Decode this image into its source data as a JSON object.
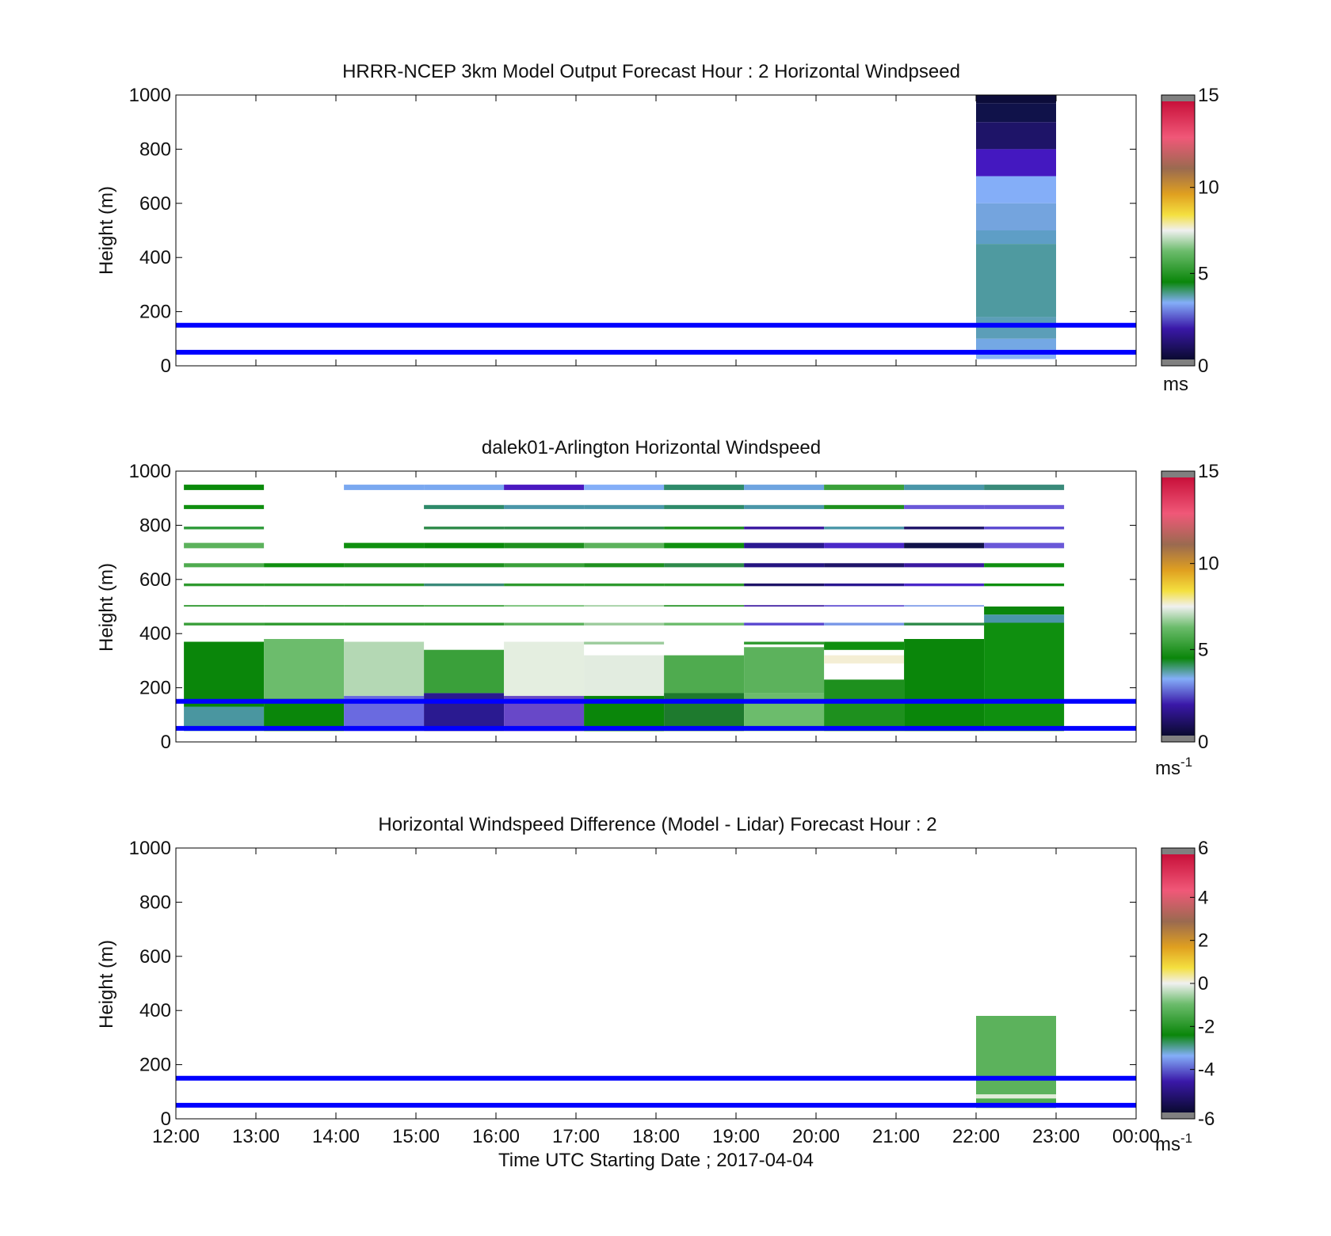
{
  "figure": {
    "xlabel": "Time UTC  Starting Date ; 2017-04-04",
    "x_ticks": [
      "12:00",
      "13:00",
      "14:00",
      "15:00",
      "16:00",
      "17:00",
      "18:00",
      "19:00",
      "20:00",
      "21:00",
      "22:00",
      "23:00",
      "00:00"
    ],
    "y_ticks": [
      "0",
      "200",
      "400",
      "600",
      "800",
      "1000"
    ],
    "ylabel": "Height (m)",
    "reference_line_color": "#0000ff",
    "reference_lines_m": [
      50,
      150
    ]
  },
  "chart_data": [
    {
      "type": "heatmap",
      "title": "HRRR-NCEP 3km Model Output   Forecast Hour : 2 Horizontal Windpseed",
      "ylabel": "Height (m)",
      "xlim_hours": [
        12,
        24
      ],
      "ylim": [
        0,
        1000
      ],
      "colorbar": {
        "ticks": [
          "0",
          "5",
          "10",
          "15"
        ],
        "range": [
          0,
          15
        ],
        "unit": "ms",
        "unit_sup": ""
      },
      "cells": [
        {
          "t0": 22,
          "t1": 23,
          "h0": 970,
          "h1": 1000,
          "color": "#0c0c3a"
        },
        {
          "t0": 22,
          "t1": 23,
          "h0": 900,
          "h1": 970,
          "color": "#10124a"
        },
        {
          "t0": 22,
          "t1": 23,
          "h0": 800,
          "h1": 900,
          "color": "#1e1468"
        },
        {
          "t0": 22,
          "t1": 23,
          "h0": 700,
          "h1": 800,
          "color": "#4418c0"
        },
        {
          "t0": 22,
          "t1": 23,
          "h0": 600,
          "h1": 700,
          "color": "#84aef8"
        },
        {
          "t0": 22,
          "t1": 23,
          "h0": 500,
          "h1": 600,
          "color": "#74a4de"
        },
        {
          "t0": 22,
          "t1": 23,
          "h0": 450,
          "h1": 500,
          "color": "#5e9ec6"
        },
        {
          "t0": 22,
          "t1": 23,
          "h0": 180,
          "h1": 450,
          "color": "#4f9aa0"
        },
        {
          "t0": 22,
          "t1": 23,
          "h0": 100,
          "h1": 180,
          "color": "#5c9eb8"
        },
        {
          "t0": 22,
          "t1": 23,
          "h0": 60,
          "h1": 100,
          "color": "#74a8e4"
        },
        {
          "t0": 22,
          "t1": 23,
          "h0": 25,
          "h1": 60,
          "color": "#86b2f6"
        }
      ]
    },
    {
      "type": "heatmap",
      "title": "dalek01-Arlington  Horizontal Windspeed",
      "ylabel": "Height (m)",
      "xlim_hours": [
        12,
        24
      ],
      "ylim": [
        0,
        1000
      ],
      "colorbar": {
        "ticks": [
          "0",
          "5",
          "10",
          "15"
        ],
        "range": [
          0,
          15
        ],
        "unit": "ms",
        "unit_sup": "-1"
      },
      "cells": [
        {
          "t0": 12.1,
          "t1": 13.1,
          "h0": 930,
          "h1": 950,
          "color": "#0a8a0a"
        },
        {
          "t0": 12.1,
          "t1": 13.1,
          "h0": 860,
          "h1": 875,
          "color": "#0f8f0f"
        },
        {
          "t0": 12.1,
          "t1": 13.1,
          "h0": 785,
          "h1": 795,
          "color": "#2e9a3a"
        },
        {
          "t0": 12.1,
          "t1": 13.1,
          "h0": 715,
          "h1": 735,
          "color": "#5cb25c"
        },
        {
          "t0": 12.1,
          "t1": 13.1,
          "h0": 645,
          "h1": 660,
          "color": "#4fab4f"
        },
        {
          "t0": 12.1,
          "t1": 13.1,
          "h0": 575,
          "h1": 585,
          "color": "#2e9a2e"
        },
        {
          "t0": 12.1,
          "t1": 13.1,
          "h0": 500,
          "h1": 505,
          "color": "#1e901e"
        },
        {
          "t0": 12.1,
          "t1": 13.1,
          "h0": 430,
          "h1": 440,
          "color": "#3a9f3a"
        },
        {
          "t0": 12.1,
          "t1": 13.1,
          "h0": 130,
          "h1": 370,
          "color": "#0a860a"
        },
        {
          "t0": 12.1,
          "t1": 13.1,
          "h0": 40,
          "h1": 130,
          "color": "#4a96a0"
        },
        {
          "t0": 13.1,
          "t1": 14.1,
          "h0": 645,
          "h1": 660,
          "color": "#0f8f0f"
        },
        {
          "t0": 13.1,
          "t1": 14.1,
          "h0": 575,
          "h1": 585,
          "color": "#2e9a2e"
        },
        {
          "t0": 13.1,
          "t1": 14.1,
          "h0": 500,
          "h1": 505,
          "color": "#1e901e"
        },
        {
          "t0": 13.1,
          "t1": 14.1,
          "h0": 430,
          "h1": 440,
          "color": "#2e9a2e"
        },
        {
          "t0": 13.1,
          "t1": 14.1,
          "h0": 160,
          "h1": 380,
          "color": "#6cbc6c"
        },
        {
          "t0": 13.1,
          "t1": 14.1,
          "h0": 40,
          "h1": 160,
          "color": "#0a860a"
        },
        {
          "t0": 14.1,
          "t1": 15.1,
          "h0": 930,
          "h1": 950,
          "color": "#7aa8f0"
        },
        {
          "t0": 14.1,
          "t1": 15.1,
          "h0": 715,
          "h1": 735,
          "color": "#0f8f0f"
        },
        {
          "t0": 14.1,
          "t1": 15.1,
          "h0": 645,
          "h1": 660,
          "color": "#1e901e"
        },
        {
          "t0": 14.1,
          "t1": 15.1,
          "h0": 575,
          "h1": 585,
          "color": "#2e9a2e"
        },
        {
          "t0": 14.1,
          "t1": 15.1,
          "h0": 500,
          "h1": 505,
          "color": "#1e901e"
        },
        {
          "t0": 14.1,
          "t1": 15.1,
          "h0": 430,
          "h1": 440,
          "color": "#2e9a2e"
        },
        {
          "t0": 14.1,
          "t1": 15.1,
          "h0": 170,
          "h1": 370,
          "color": "#b4d8b4"
        },
        {
          "t0": 14.1,
          "t1": 15.1,
          "h0": 40,
          "h1": 170,
          "color": "#6a6ae0"
        },
        {
          "t0": 15.1,
          "t1": 16.1,
          "h0": 930,
          "h1": 950,
          "color": "#7aa8f0"
        },
        {
          "t0": 15.1,
          "t1": 16.1,
          "h0": 860,
          "h1": 875,
          "color": "#2e8a6a"
        },
        {
          "t0": 15.1,
          "t1": 16.1,
          "h0": 785,
          "h1": 795,
          "color": "#2e8a4a"
        },
        {
          "t0": 15.1,
          "t1": 16.1,
          "h0": 715,
          "h1": 735,
          "color": "#0a8a0a"
        },
        {
          "t0": 15.1,
          "t1": 16.1,
          "h0": 645,
          "h1": 660,
          "color": "#1e901e"
        },
        {
          "t0": 15.1,
          "t1": 16.1,
          "h0": 575,
          "h1": 585,
          "color": "#3a8a7a"
        },
        {
          "t0": 15.1,
          "t1": 16.1,
          "h0": 500,
          "h1": 505,
          "color": "#2e9a2e"
        },
        {
          "t0": 15.1,
          "t1": 16.1,
          "h0": 430,
          "h1": 440,
          "color": "#2e9a2e"
        },
        {
          "t0": 15.1,
          "t1": 16.1,
          "h0": 180,
          "h1": 340,
          "color": "#3aa03a"
        },
        {
          "t0": 15.1,
          "t1": 16.1,
          "h0": 40,
          "h1": 180,
          "color": "#2a1a90"
        },
        {
          "t0": 16.1,
          "t1": 17.1,
          "h0": 930,
          "h1": 950,
          "color": "#4a18c0"
        },
        {
          "t0": 16.1,
          "t1": 17.1,
          "h0": 860,
          "h1": 875,
          "color": "#4a96a8"
        },
        {
          "t0": 16.1,
          "t1": 17.1,
          "h0": 785,
          "h1": 795,
          "color": "#2e8a4a"
        },
        {
          "t0": 16.1,
          "t1": 17.1,
          "h0": 715,
          "h1": 735,
          "color": "#1e901e"
        },
        {
          "t0": 16.1,
          "t1": 17.1,
          "h0": 645,
          "h1": 660,
          "color": "#3aa03a"
        },
        {
          "t0": 16.1,
          "t1": 17.1,
          "h0": 575,
          "h1": 585,
          "color": "#2e9a2e"
        },
        {
          "t0": 16.1,
          "t1": 17.1,
          "h0": 500,
          "h1": 505,
          "color": "#6cbc6c"
        },
        {
          "t0": 16.1,
          "t1": 17.1,
          "h0": 430,
          "h1": 440,
          "color": "#5cb25c"
        },
        {
          "t0": 16.1,
          "t1": 17.1,
          "h0": 170,
          "h1": 370,
          "color": "#e4eee0"
        },
        {
          "t0": 16.1,
          "t1": 17.1,
          "h0": 40,
          "h1": 170,
          "color": "#6848c8"
        },
        {
          "t0": 17.1,
          "t1": 18.1,
          "h0": 930,
          "h1": 950,
          "color": "#84aef8"
        },
        {
          "t0": 17.1,
          "t1": 18.1,
          "h0": 860,
          "h1": 875,
          "color": "#4a96a8"
        },
        {
          "t0": 17.1,
          "t1": 18.1,
          "h0": 785,
          "h1": 795,
          "color": "#2e8a4a"
        },
        {
          "t0": 17.1,
          "t1": 18.1,
          "h0": 715,
          "h1": 735,
          "color": "#5cb25c"
        },
        {
          "t0": 17.1,
          "t1": 18.1,
          "h0": 645,
          "h1": 660,
          "color": "#1e901e"
        },
        {
          "t0": 17.1,
          "t1": 18.1,
          "h0": 575,
          "h1": 585,
          "color": "#2e9a2e"
        },
        {
          "t0": 17.1,
          "t1": 18.1,
          "h0": 500,
          "h1": 505,
          "color": "#9ccc9c"
        },
        {
          "t0": 17.1,
          "t1": 18.1,
          "h0": 430,
          "h1": 440,
          "color": "#9ccc9c"
        },
        {
          "t0": 17.1,
          "t1": 18.1,
          "h0": 360,
          "h1": 370,
          "color": "#9ccc9c"
        },
        {
          "t0": 17.1,
          "t1": 18.1,
          "h0": 170,
          "h1": 320,
          "color": "#e2ece0"
        },
        {
          "t0": 17.1,
          "t1": 18.1,
          "h0": 40,
          "h1": 170,
          "color": "#0a860a"
        },
        {
          "t0": 18.1,
          "t1": 19.1,
          "h0": 930,
          "h1": 950,
          "color": "#2e8a6a"
        },
        {
          "t0": 18.1,
          "t1": 19.1,
          "h0": 860,
          "h1": 875,
          "color": "#2e8a6a"
        },
        {
          "t0": 18.1,
          "t1": 19.1,
          "h0": 785,
          "h1": 795,
          "color": "#1e901e"
        },
        {
          "t0": 18.1,
          "t1": 19.1,
          "h0": 715,
          "h1": 735,
          "color": "#0f8f0f"
        },
        {
          "t0": 18.1,
          "t1": 19.1,
          "h0": 645,
          "h1": 660,
          "color": "#2e8a4a"
        },
        {
          "t0": 18.1,
          "t1": 19.1,
          "h0": 575,
          "h1": 585,
          "color": "#2e9a2e"
        },
        {
          "t0": 18.1,
          "t1": 19.1,
          "h0": 500,
          "h1": 505,
          "color": "#1e901e"
        },
        {
          "t0": 18.1,
          "t1": 19.1,
          "h0": 430,
          "h1": 440,
          "color": "#6cbc6c"
        },
        {
          "t0": 18.1,
          "t1": 19.1,
          "h0": 180,
          "h1": 320,
          "color": "#4fab4f"
        },
        {
          "t0": 18.1,
          "t1": 19.1,
          "h0": 40,
          "h1": 180,
          "color": "#1e7a2e"
        },
        {
          "t0": 19.1,
          "t1": 20.1,
          "h0": 930,
          "h1": 950,
          "color": "#6ea4e0"
        },
        {
          "t0": 19.1,
          "t1": 20.1,
          "h0": 860,
          "h1": 875,
          "color": "#4a96a8"
        },
        {
          "t0": 19.1,
          "t1": 20.1,
          "h0": 785,
          "h1": 795,
          "color": "#3a18a0"
        },
        {
          "t0": 19.1,
          "t1": 20.1,
          "h0": 715,
          "h1": 735,
          "color": "#2a1890"
        },
        {
          "t0": 19.1,
          "t1": 20.1,
          "h0": 645,
          "h1": 660,
          "color": "#241480"
        },
        {
          "t0": 19.1,
          "t1": 20.1,
          "h0": 575,
          "h1": 585,
          "color": "#1e1468"
        },
        {
          "t0": 19.1,
          "t1": 20.1,
          "h0": 500,
          "h1": 505,
          "color": "#3a18a0"
        },
        {
          "t0": 19.1,
          "t1": 20.1,
          "h0": 430,
          "h1": 440,
          "color": "#5a48d0"
        },
        {
          "t0": 19.1,
          "t1": 20.1,
          "h0": 360,
          "h1": 370,
          "color": "#2e9a2e"
        },
        {
          "t0": 19.1,
          "t1": 20.1,
          "h0": 180,
          "h1": 350,
          "color": "#5cb25c"
        },
        {
          "t0": 19.1,
          "t1": 20.1,
          "h0": 40,
          "h1": 180,
          "color": "#6cbc6c"
        },
        {
          "t0": 20.1,
          "t1": 21.1,
          "h0": 930,
          "h1": 950,
          "color": "#3aa03a"
        },
        {
          "t0": 20.1,
          "t1": 21.1,
          "h0": 860,
          "h1": 875,
          "color": "#1e901e"
        },
        {
          "t0": 20.1,
          "t1": 21.1,
          "h0": 785,
          "h1": 795,
          "color": "#4a96a8"
        },
        {
          "t0": 20.1,
          "t1": 21.1,
          "h0": 715,
          "h1": 735,
          "color": "#4a28c8"
        },
        {
          "t0": 20.1,
          "t1": 21.1,
          "h0": 645,
          "h1": 660,
          "color": "#1e1468"
        },
        {
          "t0": 20.1,
          "t1": 21.1,
          "h0": 575,
          "h1": 585,
          "color": "#2a1890"
        },
        {
          "t0": 20.1,
          "t1": 21.1,
          "h0": 500,
          "h1": 505,
          "color": "#5a48d0"
        },
        {
          "t0": 20.1,
          "t1": 21.1,
          "h0": 430,
          "h1": 440,
          "color": "#7a98e8"
        },
        {
          "t0": 20.1,
          "t1": 21.1,
          "h0": 340,
          "h1": 370,
          "color": "#0f8f0f"
        },
        {
          "t0": 20.1,
          "t1": 21.1,
          "h0": 290,
          "h1": 320,
          "color": "#f4eed4"
        },
        {
          "t0": 20.1,
          "t1": 21.1,
          "h0": 40,
          "h1": 230,
          "color": "#1e901e"
        },
        {
          "t0": 21.1,
          "t1": 22.1,
          "h0": 930,
          "h1": 950,
          "color": "#4a96a8"
        },
        {
          "t0": 21.1,
          "t1": 22.1,
          "h0": 860,
          "h1": 875,
          "color": "#6a58d8"
        },
        {
          "t0": 21.1,
          "t1": 22.1,
          "h0": 785,
          "h1": 795,
          "color": "#1e1468"
        },
        {
          "t0": 21.1,
          "t1": 22.1,
          "h0": 715,
          "h1": 735,
          "color": "#10124a"
        },
        {
          "t0": 21.1,
          "t1": 22.1,
          "h0": 645,
          "h1": 660,
          "color": "#3a18a0"
        },
        {
          "t0": 21.1,
          "t1": 22.1,
          "h0": 575,
          "h1": 585,
          "color": "#4a28c8"
        },
        {
          "t0": 21.1,
          "t1": 22.1,
          "h0": 500,
          "h1": 505,
          "color": "#7a98e8"
        },
        {
          "t0": 21.1,
          "t1": 22.1,
          "h0": 430,
          "h1": 440,
          "color": "#2e8a4a"
        },
        {
          "t0": 21.1,
          "t1": 22.1,
          "h0": 40,
          "h1": 380,
          "color": "#0a860a"
        },
        {
          "t0": 22.1,
          "t1": 23.1,
          "h0": 930,
          "h1": 950,
          "color": "#3a8a7a"
        },
        {
          "t0": 22.1,
          "t1": 23.1,
          "h0": 860,
          "h1": 875,
          "color": "#6a58d8"
        },
        {
          "t0": 22.1,
          "t1": 23.1,
          "h0": 785,
          "h1": 795,
          "color": "#5a48d0"
        },
        {
          "t0": 22.1,
          "t1": 23.1,
          "h0": 715,
          "h1": 735,
          "color": "#6a58d8"
        },
        {
          "t0": 22.1,
          "t1": 23.1,
          "h0": 645,
          "h1": 660,
          "color": "#0f8f0f"
        },
        {
          "t0": 22.1,
          "t1": 23.1,
          "h0": 575,
          "h1": 585,
          "color": "#0f8f0f"
        },
        {
          "t0": 22.1,
          "t1": 23.1,
          "h0": 470,
          "h1": 500,
          "color": "#0a860a"
        },
        {
          "t0": 22.1,
          "t1": 23.1,
          "h0": 440,
          "h1": 470,
          "color": "#4a96a8"
        },
        {
          "t0": 22.1,
          "t1": 23.1,
          "h0": 40,
          "h1": 440,
          "color": "#0f8f0f"
        }
      ]
    },
    {
      "type": "heatmap",
      "title": "Horizontal Windspeed Difference (Model - Lidar) Forecast Hour : 2",
      "ylabel": "Height (m)",
      "xlim_hours": [
        12,
        24
      ],
      "ylim": [
        0,
        1000
      ],
      "colorbar": {
        "ticks": [
          "-6",
          "-4",
          "-2",
          "0",
          "2",
          "4",
          "6"
        ],
        "range": [
          -6,
          6
        ],
        "unit": "ms",
        "unit_sup": "-1"
      },
      "cells": [
        {
          "t0": 22,
          "t1": 23,
          "h0": 90,
          "h1": 380,
          "color": "#5cb25c"
        },
        {
          "t0": 22,
          "t1": 23,
          "h0": 75,
          "h1": 90,
          "color": "#e0ecd8"
        },
        {
          "t0": 22,
          "t1": 23,
          "h0": 40,
          "h1": 75,
          "color": "#4fab4f"
        }
      ]
    }
  ]
}
